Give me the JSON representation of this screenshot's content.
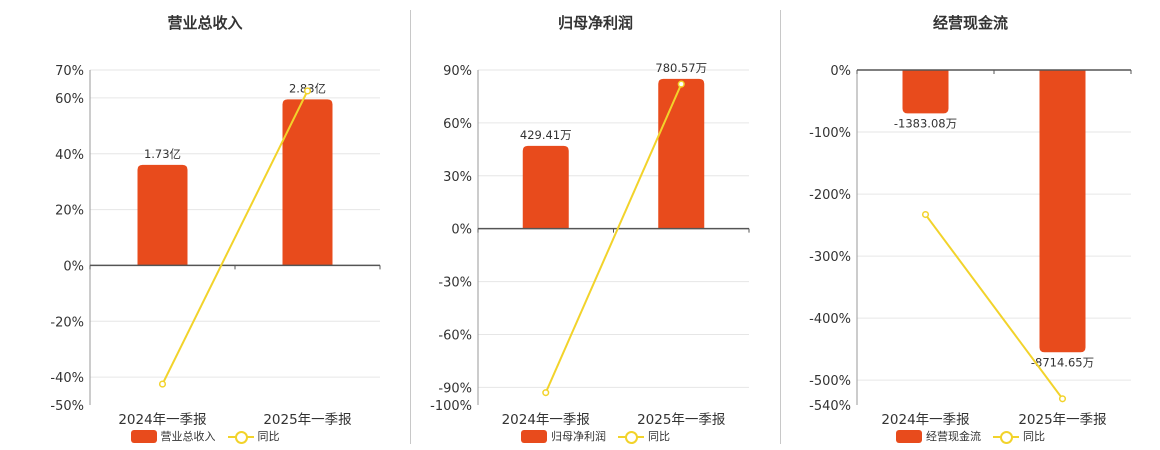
{
  "colors": {
    "bar": "#e84b1c",
    "line": "#f2d32b",
    "axis": "#555555",
    "grid": "#e6e6e6",
    "text": "#333333"
  },
  "chart_data": [
    {
      "type": "bar",
      "title": "营业总收入",
      "categories": [
        "2024年一季报",
        "2025年一季报"
      ],
      "bar_series": {
        "name": "营业总收入",
        "values": [
          36,
          59.5
        ],
        "labels": [
          "1.73亿",
          "2.83亿"
        ]
      },
      "line_series": {
        "name": "同比",
        "values": [
          -42.5,
          62.5
        ]
      },
      "yticks": [
        "70%",
        "60%",
        "40%",
        "20%",
        "0%",
        "-20%",
        "-40%",
        "-50%"
      ],
      "ytick_values": [
        70,
        60,
        40,
        20,
        0,
        -20,
        -40,
        -50
      ],
      "ylim": [
        -50,
        70
      ],
      "grid": true
    },
    {
      "type": "bar",
      "title": "归母净利润",
      "categories": [
        "2024年一季报",
        "2025年一季报"
      ],
      "bar_series": {
        "name": "归母净利润",
        "values": [
          47,
          85
        ],
        "labels": [
          "429.41万",
          "780.57万"
        ]
      },
      "line_series": {
        "name": "同比",
        "values": [
          -93,
          82
        ]
      },
      "yticks": [
        "90%",
        "60%",
        "30%",
        "0%",
        "-30%",
        "-60%",
        "-90%",
        "-100%"
      ],
      "ytick_values": [
        90,
        60,
        30,
        0,
        -30,
        -60,
        -90,
        -100
      ],
      "ylim": [
        -100,
        90
      ],
      "grid": true
    },
    {
      "type": "bar",
      "title": "经营现金流",
      "categories": [
        "2024年一季报",
        "2025年一季报"
      ],
      "bar_series": {
        "name": "经营现金流",
        "values": [
          -70,
          -455
        ],
        "labels": [
          "-1383.08万",
          "-8714.65万"
        ]
      },
      "line_series": {
        "name": "同比",
        "values": [
          -233,
          -530
        ]
      },
      "yticks": [
        "0%",
        "-100%",
        "-200%",
        "-300%",
        "-400%",
        "-500%",
        "-540%"
      ],
      "ytick_values": [
        0,
        -100,
        -200,
        -300,
        -400,
        -500,
        -540
      ],
      "ylim": [
        -540,
        0
      ],
      "grid": true
    }
  ]
}
